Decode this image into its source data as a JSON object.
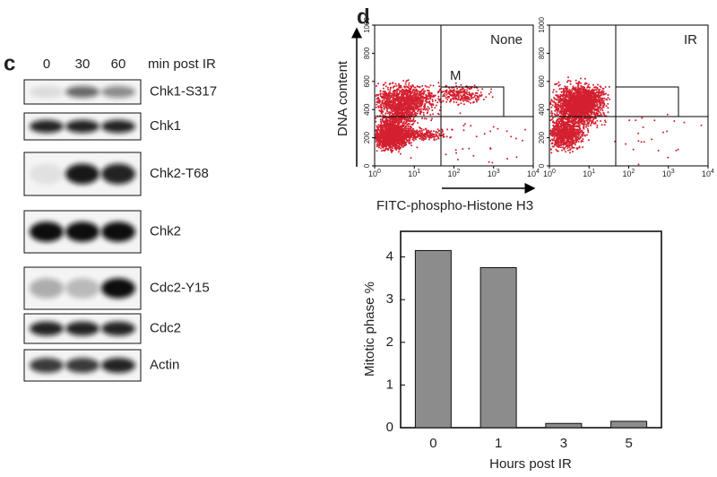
{
  "panel_c": {
    "label": "c",
    "columns": [
      "0",
      "30",
      "60"
    ],
    "column_unit": "min post IR",
    "blots": [
      "Chk1-S317",
      "Chk1",
      "Chk2-T68",
      "Chk2",
      "Cdc2-Y15",
      "Cdc2",
      "Actin"
    ]
  },
  "panel_d": {
    "label": "d",
    "flow": {
      "y_label": "DNA content",
      "x_label": "FITC-phospho-Histone H3",
      "gate_label": "M",
      "plots": [
        "None",
        "IR"
      ],
      "yticks": [
        0,
        200,
        400,
        600,
        800,
        1000
      ],
      "xticks": [
        {
          "base": "10",
          "exp": "0"
        },
        {
          "base": "10",
          "exp": "1"
        },
        {
          "base": "10",
          "exp": "2"
        },
        {
          "base": "10",
          "exp": "3"
        },
        {
          "base": "10",
          "exp": "4"
        }
      ]
    }
  },
  "chart_data": {
    "type": "bar",
    "categories": [
      "0",
      "1",
      "3",
      "5"
    ],
    "values": [
      4.15,
      3.75,
      0.1,
      0.15
    ],
    "color": "#8c8c8c",
    "ylim": [
      0,
      4.6
    ],
    "yticks": [
      0,
      1,
      2,
      3,
      4
    ],
    "y_label": "Mitotic phase %",
    "x_label": "Hours post IR"
  }
}
